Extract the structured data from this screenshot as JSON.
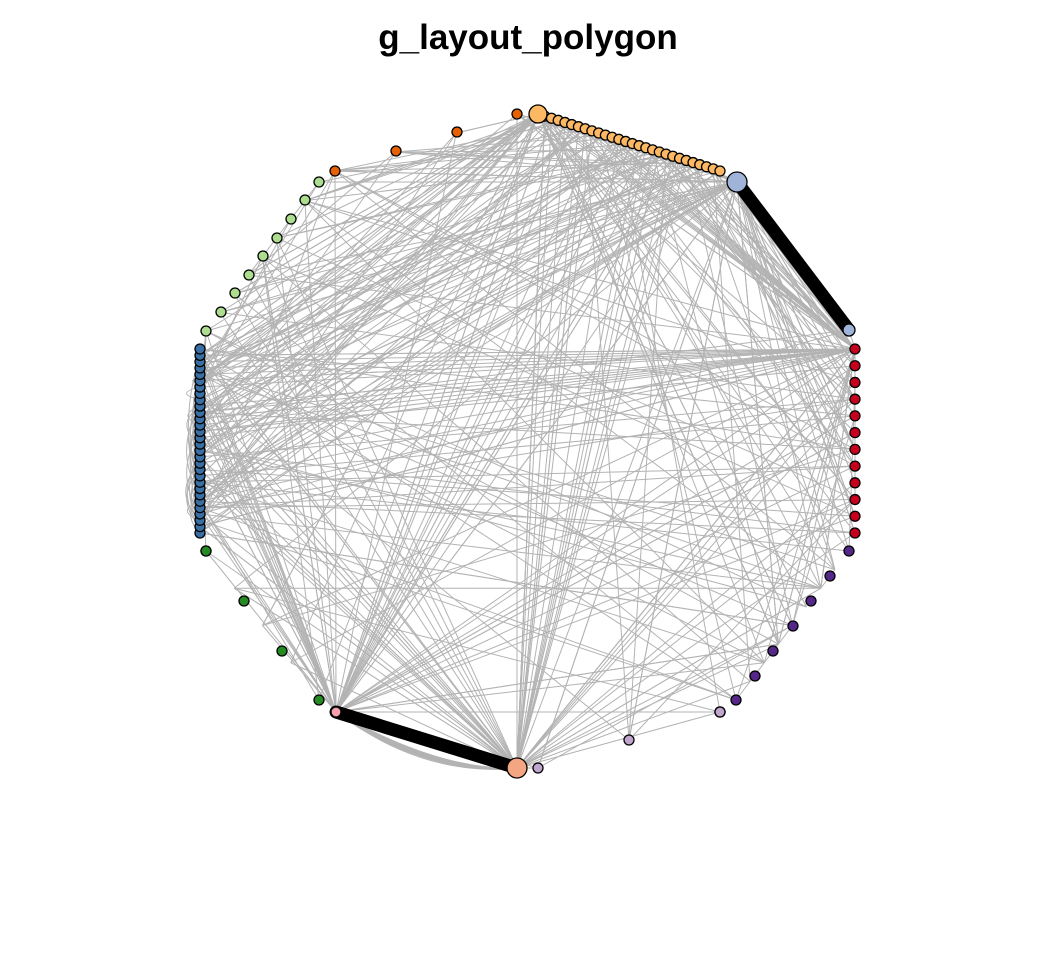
{
  "title": "g_layout_polygon",
  "colors": {
    "background": "#ffffff",
    "edge": "#b3b3b3",
    "node_stroke": "#000000",
    "thick_edge": "#000000"
  },
  "groups": [
    {
      "name": "light-orange",
      "color": "#fdb863",
      "count": 28
    },
    {
      "name": "light-blue",
      "color": "#9fb4d8",
      "count": 2
    },
    {
      "name": "red",
      "color": "#c8001e",
      "count": 12
    },
    {
      "name": "purple",
      "color": "#542788",
      "count": 9
    },
    {
      "name": "lavender",
      "color": "#c2a5cf",
      "count": 3
    },
    {
      "name": "salmon",
      "color": "#f4a582",
      "count": 1
    },
    {
      "name": "pink",
      "color": "#f7a1b0",
      "count": 1
    },
    {
      "name": "dark-green",
      "color": "#238b21",
      "count": 5
    },
    {
      "name": "steel-blue",
      "color": "#3a6fa3",
      "count": 30
    },
    {
      "name": "light-green",
      "color": "#addd8e",
      "count": 9
    },
    {
      "name": "orange",
      "color": "#e66101",
      "count": 4
    }
  ]
}
